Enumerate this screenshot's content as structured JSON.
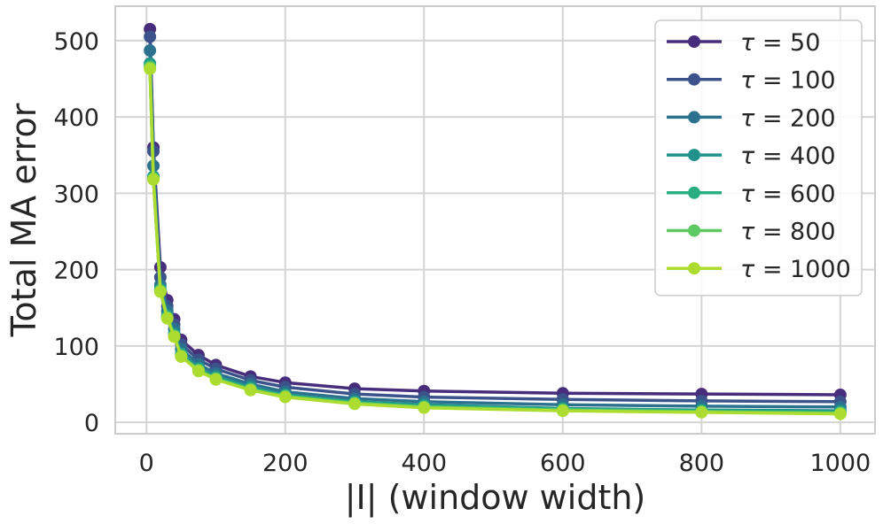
{
  "chart_data": {
    "type": "line",
    "title": "",
    "xlabel": "|I| (window width)",
    "ylabel": "Total MA error",
    "xlim": [
      -45,
      1050
    ],
    "ylim": [
      -15,
      545
    ],
    "x_ticks": [
      0,
      200,
      400,
      600,
      800,
      1000
    ],
    "y_ticks": [
      0,
      100,
      200,
      300,
      400,
      500
    ],
    "grid": true,
    "legend_position": "top-right",
    "x": [
      5,
      10,
      20,
      30,
      40,
      50,
      75,
      100,
      150,
      200,
      300,
      400,
      600,
      800,
      1000
    ],
    "series": [
      {
        "name": "τ = 50",
        "legend_tau": "50",
        "color": "#472d7b",
        "values": [
          515,
          360,
          203,
          160,
          135,
          108,
          88,
          75,
          60,
          52,
          44,
          41,
          38,
          37,
          36
        ]
      },
      {
        "name": "τ = 100",
        "legend_tau": "100",
        "color": "#3b528b",
        "values": [
          505,
          355,
          190,
          152,
          128,
          102,
          82,
          70,
          55,
          46,
          37,
          33,
          30,
          28,
          27
        ]
      },
      {
        "name": "τ = 200",
        "legend_tau": "200",
        "color": "#2c728e",
        "values": [
          487,
          336,
          180,
          146,
          122,
          96,
          76,
          64,
          50,
          40,
          31,
          27,
          23,
          21,
          20
        ]
      },
      {
        "name": "τ = 400",
        "legend_tau": "400",
        "color": "#21918c",
        "values": [
          470,
          322,
          175,
          140,
          116,
          90,
          71,
          60,
          46,
          36,
          27,
          23,
          18,
          16,
          15
        ]
      },
      {
        "name": "τ = 600",
        "legend_tau": "600",
        "color": "#28ae80",
        "values": [
          467,
          320,
          173,
          138,
          114,
          88,
          69,
          58,
          44,
          35,
          26,
          21,
          17,
          15,
          13
        ]
      },
      {
        "name": "τ = 800",
        "legend_tau": "800",
        "color": "#5ec962",
        "values": [
          465,
          319,
          172,
          137,
          113,
          87,
          68,
          57,
          43,
          34,
          25,
          20,
          16,
          14,
          12
        ]
      },
      {
        "name": "τ = 1000",
        "legend_tau": "1000",
        "color": "#addc30",
        "values": [
          463,
          318,
          171,
          136,
          112,
          86,
          67,
          56,
          42,
          33,
          24,
          19,
          15,
          13,
          11
        ]
      }
    ]
  }
}
